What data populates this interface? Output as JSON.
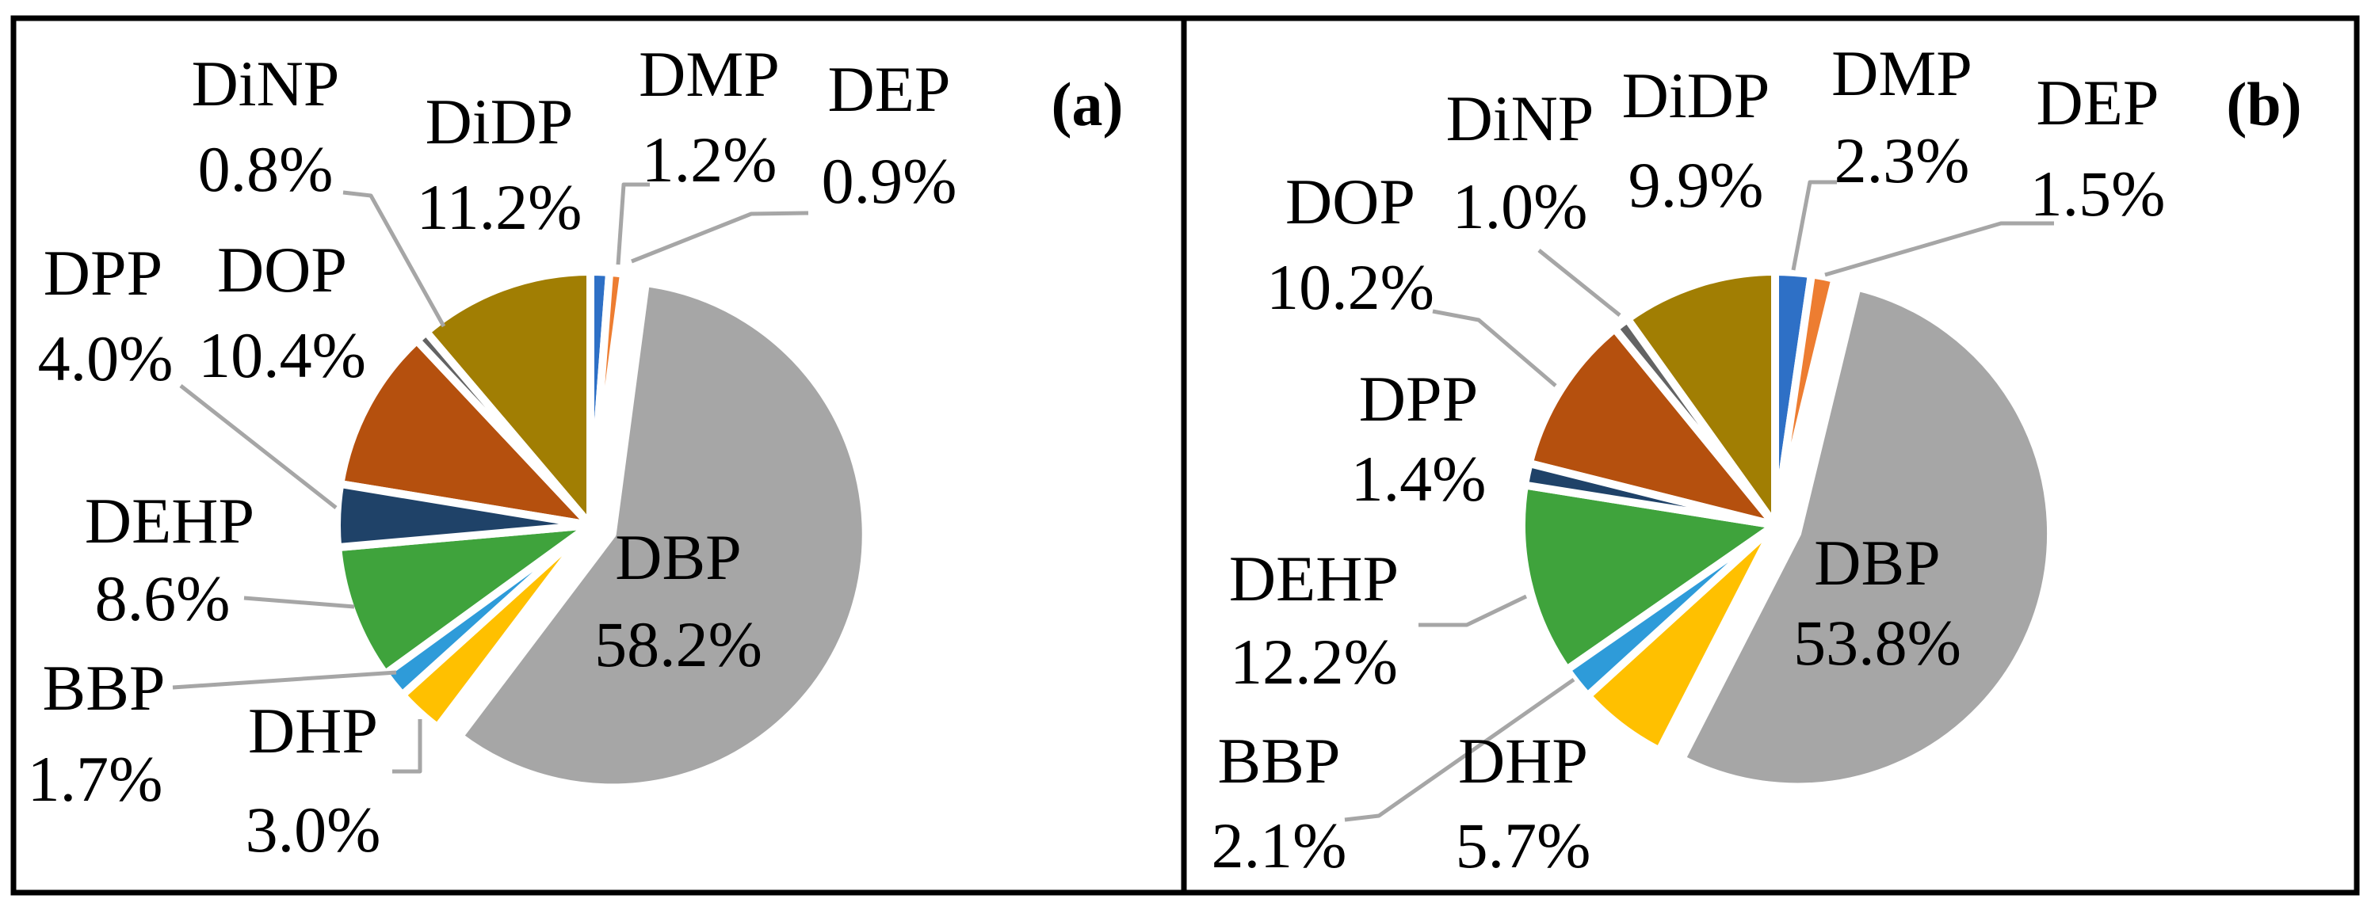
{
  "figure": {
    "panels": [
      {
        "id": "a",
        "tag": "(a)"
      },
      {
        "id": "b",
        "tag": "(b)"
      }
    ]
  },
  "colors": {
    "background": "#FFFFFF",
    "border": "#000000",
    "panel_divider": "#000000",
    "slice_border": "#FFFFFF",
    "leader_line": "#A6A6A6",
    "label_text": "#000000"
  },
  "chart_data": [
    {
      "type": "pie",
      "panel": "a",
      "title": "(a)",
      "legend_position": "none",
      "labels_shown_as": "callout name + percent",
      "start_angle_deg": 0,
      "direction": "clockwise",
      "slices": [
        {
          "name": "DMP",
          "value": 1.2,
          "display": "1.2%",
          "color": "#2E70C6"
        },
        {
          "name": "DEP",
          "value": 0.9,
          "display": "0.9%",
          "color": "#ED7D31"
        },
        {
          "name": "DBP",
          "value": 58.2,
          "display": "58.2%",
          "color": "#A6A6A6",
          "exploded": true
        },
        {
          "name": "DHP",
          "value": 3.0,
          "display": "3.0%",
          "color": "#FFC000"
        },
        {
          "name": "BBP",
          "value": 1.7,
          "display": "1.7%",
          "color": "#2E9BD9"
        },
        {
          "name": "DEHP",
          "value": 8.6,
          "display": "8.6%",
          "color": "#3FA33C"
        },
        {
          "name": "DPP",
          "value": 4.0,
          "display": "4.0%",
          "color": "#1F4268"
        },
        {
          "name": "DOP",
          "value": 10.4,
          "display": "10.4%",
          "color": "#B5500E"
        },
        {
          "name": "DiNP",
          "value": 0.8,
          "display": "0.8%",
          "color": "#636363"
        },
        {
          "name": "DiDP",
          "value": 11.2,
          "display": "11.2%",
          "color": "#A17E03"
        }
      ]
    },
    {
      "type": "pie",
      "panel": "b",
      "title": "(b)",
      "legend_position": "none",
      "labels_shown_as": "callout name + percent",
      "start_angle_deg": 0,
      "direction": "clockwise",
      "slices": [
        {
          "name": "DMP",
          "value": 2.3,
          "display": "2.3%",
          "color": "#2E70C6"
        },
        {
          "name": "DEP",
          "value": 1.5,
          "display": "1.5%",
          "color": "#ED7D31"
        },
        {
          "name": "DBP",
          "value": 53.8,
          "display": "53.8%",
          "color": "#A6A6A6",
          "exploded": true
        },
        {
          "name": "DHP",
          "value": 5.7,
          "display": "5.7%",
          "color": "#FFC000"
        },
        {
          "name": "BBP",
          "value": 2.1,
          "display": "2.1%",
          "color": "#2E9BD9"
        },
        {
          "name": "DEHP",
          "value": 12.2,
          "display": "12.2%",
          "color": "#3FA33C"
        },
        {
          "name": "DPP",
          "value": 1.4,
          "display": "1.4%",
          "color": "#1F4268"
        },
        {
          "name": "DOP",
          "value": 10.2,
          "display": "10.2%",
          "color": "#B5500E"
        },
        {
          "name": "DiNP",
          "value": 1.0,
          "display": "1.0%",
          "color": "#636363"
        },
        {
          "name": "DiDP",
          "value": 9.9,
          "display": "9.9%",
          "color": "#A17E03"
        }
      ]
    }
  ]
}
